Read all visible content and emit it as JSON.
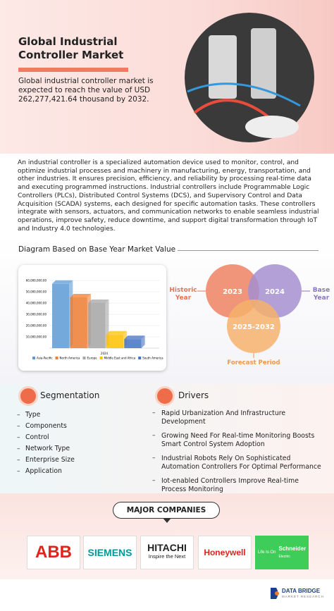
{
  "header": {
    "title": "Global Industrial Controller Market",
    "summary": "Global industrial controller market is expected to reach the value of USD 262,277,421.64 thousand by 2032."
  },
  "description": "An industrial controller is a specialized automation device used to monitor, control, and optimize industrial processes and machinery in manufacturing, energy, transportation, and other industries. It ensures precision, efficiency, and reliability by processing real-time data and executing programmed instructions. Industrial controllers include Programmable Logic Controllers (PLCs), Distributed Control Systems (DCS), and Supervisory Control and Data Acquisition (SCADA) systems, each designed for specific automation tasks. These controllers integrate with sensors, actuators, and communication networks to enable seamless industrial operations, improve safety, reduce downtime, and support digital transformation through IoT and Industry 4.0 technologies.",
  "diagram": {
    "heading": "Diagram Based on Base Year Market Value"
  },
  "chart_data": {
    "type": "bar",
    "categories": [
      "2024"
    ],
    "series": [
      {
        "name": "Asia-Pacific",
        "color": "#5b9bd5",
        "values": [
          57000000
        ]
      },
      {
        "name": "North America",
        "color": "#ed7d31",
        "values": [
          45000000
        ]
      },
      {
        "name": "Europe",
        "color": "#a5a5a5",
        "values": [
          40000000
        ]
      },
      {
        "name": "Middle East and Africa",
        "color": "#ffc000",
        "values": [
          12000000
        ]
      },
      {
        "name": "South America",
        "color": "#4472c4",
        "values": [
          8000000
        ]
      }
    ],
    "ylim": [
      0,
      60000000
    ],
    "yticks": [
      {
        "value": 10000000,
        "label": "10,000,000.00"
      },
      {
        "value": 20000000,
        "label": "20,000,000.00"
      },
      {
        "value": 30000000,
        "label": "30,000,000.00"
      },
      {
        "value": 40000000,
        "label": "40,000,000.00"
      },
      {
        "value": 50000000,
        "label": "50,000,000.00"
      },
      {
        "value": 60000000,
        "label": "60,000,000.00"
      }
    ],
    "grid": true,
    "legend": "bottom"
  },
  "timeline": {
    "historic": "Historic Year",
    "base": "Base Year",
    "forecast": "Forecast Period",
    "years": [
      "2023",
      "2024",
      "2025-2032"
    ]
  },
  "segmentation": {
    "title": "Segmentation",
    "items": [
      "Type",
      "Components",
      "Control",
      "Network Type",
      "Enterprise Size",
      "Application"
    ]
  },
  "drivers": {
    "title": "Drivers",
    "items": [
      "Rapid Urbanization And Infrastructure Development",
      "Growing Need For Real-time Monitoring Boosts Smart Control System Adoption",
      "Industrial Robots Rely On Sophisticated Automation Controllers For Optimal Performance",
      "Iot-enabled Controllers Improve Real-time Process Monitoring"
    ]
  },
  "companies": {
    "title": "MAJOR COMPANIES",
    "logos": [
      "ABB",
      "SIEMENS",
      "HITACHI",
      "Inspire the Next",
      "Honeywell",
      "Life Is On",
      "Schneider",
      "Electric"
    ]
  },
  "footer": {
    "brand": "DATA BRIDGE",
    "tagline": "MARKET RESEARCH"
  }
}
